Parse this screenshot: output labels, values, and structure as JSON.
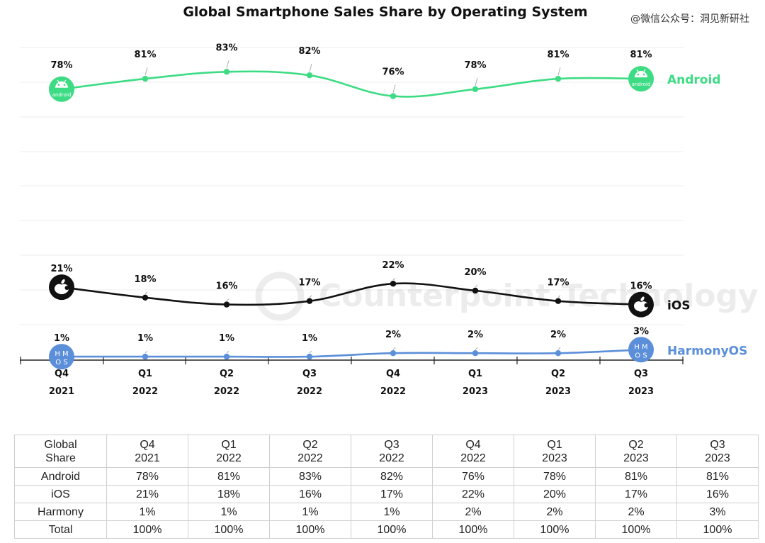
{
  "chart_data": {
    "type": "line",
    "title": "Global Smartphone Sales Share by Operating System",
    "quarters": [
      "Q4",
      "Q1",
      "Q2",
      "Q3",
      "Q4",
      "Q1",
      "Q2",
      "Q3"
    ],
    "years": [
      "2021",
      "2022",
      "2022",
      "2022",
      "2022",
      "2023",
      "2023",
      "2023"
    ],
    "series": [
      {
        "name": "Android",
        "color": "#3ddc84",
        "icon": "android-icon",
        "values": [
          78,
          81,
          83,
          82,
          76,
          78,
          81,
          81
        ]
      },
      {
        "name": "iOS",
        "color": "#111111",
        "icon": "apple-icon",
        "values": [
          21,
          18,
          16,
          17,
          22,
          20,
          17,
          16
        ]
      },
      {
        "name": "HarmonyOS",
        "color": "#5b8fd9",
        "icon": "harmonyos-icon",
        "values": [
          1,
          1,
          1,
          1,
          2,
          2,
          2,
          3
        ]
      }
    ],
    "value_suffix": "%",
    "grid": true
  },
  "watermark": "@微信公众号：洞见新研社",
  "background_logo": "Counterpoint Technology Market Research",
  "icon_text": {
    "android": "android",
    "harmony_line1": "H M",
    "harmony_line2": "O S"
  },
  "table": {
    "header_label_1": "Global",
    "header_label_2": "Share",
    "columns": [
      {
        "q": "Q4",
        "y": "2021"
      },
      {
        "q": "Q1",
        "y": "2022"
      },
      {
        "q": "Q2",
        "y": "2022"
      },
      {
        "q": "Q3",
        "y": "2022"
      },
      {
        "q": "Q4",
        "y": "2022"
      },
      {
        "q": "Q1",
        "y": "2023"
      },
      {
        "q": "Q2",
        "y": "2023"
      },
      {
        "q": "Q3",
        "y": "2023"
      }
    ],
    "rows": [
      {
        "label": "Android",
        "values": [
          "78%",
          "81%",
          "83%",
          "82%",
          "76%",
          "78%",
          "81%",
          "81%"
        ]
      },
      {
        "label": "iOS",
        "values": [
          "21%",
          "18%",
          "16%",
          "17%",
          "22%",
          "20%",
          "17%",
          "16%"
        ]
      },
      {
        "label": "Harmony",
        "values": [
          "1%",
          "1%",
          "1%",
          "1%",
          "2%",
          "2%",
          "2%",
          "3%"
        ]
      },
      {
        "label": "Total",
        "values": [
          "100%",
          "100%",
          "100%",
          "100%",
          "100%",
          "100%",
          "100%",
          "100%"
        ]
      }
    ]
  }
}
